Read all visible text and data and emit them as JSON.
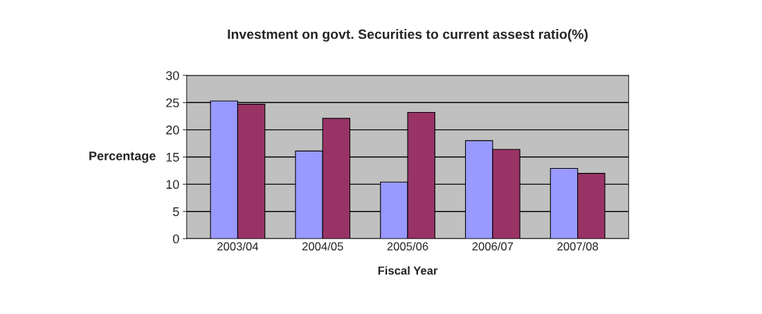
{
  "chart_data": {
    "type": "bar",
    "title": "Investment on govt. Securities to current assest ratio(%)",
    "xlabel": "Fiscal Year",
    "ylabel": "Percentage",
    "categories": [
      "2003/04",
      "2004/05",
      "2005/06",
      "2006/07",
      "2007/08"
    ],
    "series": [
      {
        "color": "#9999ff",
        "values": [
          25.3,
          16.1,
          10.4,
          18.0,
          12.9
        ]
      },
      {
        "color": "#993366",
        "values": [
          24.7,
          22.1,
          23.2,
          16.4,
          12.0
        ]
      }
    ],
    "ylim": [
      0,
      30
    ],
    "yticks": [
      0,
      5,
      10,
      15,
      20,
      25,
      30
    ],
    "grid": "y"
  }
}
